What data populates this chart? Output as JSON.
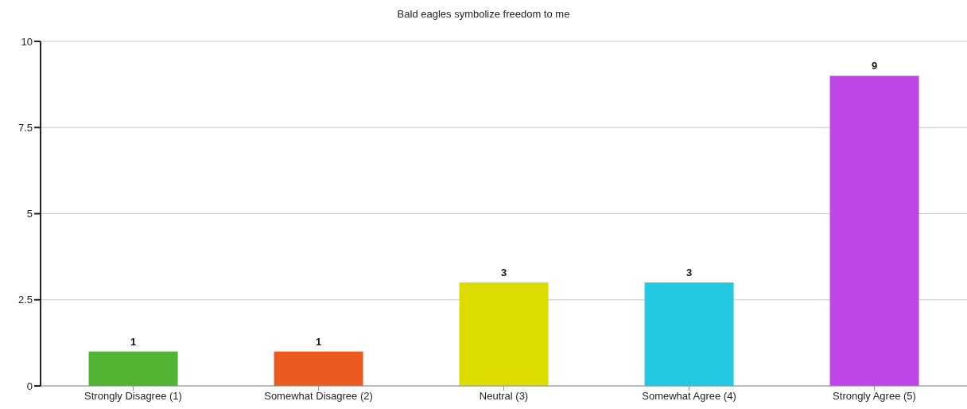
{
  "chart_data": {
    "type": "bar",
    "title": "Bald eagles symbolize freedom to me",
    "categories": [
      "Strongly Disagree (1)",
      "Somewhat Disagree (2)",
      "Neutral (3)",
      "Somewhat Agree (4)",
      "Strongly Agree (5)"
    ],
    "values": [
      1,
      1,
      3,
      3,
      9
    ],
    "colors": [
      "#52b432",
      "#eb5a1e",
      "#dcdc00",
      "#23c8e1",
      "#be46e6"
    ],
    "ylim": [
      0,
      10
    ],
    "yticks": [
      0,
      2.5,
      5,
      7.5,
      10
    ],
    "grid": "y",
    "data_labels": true
  }
}
